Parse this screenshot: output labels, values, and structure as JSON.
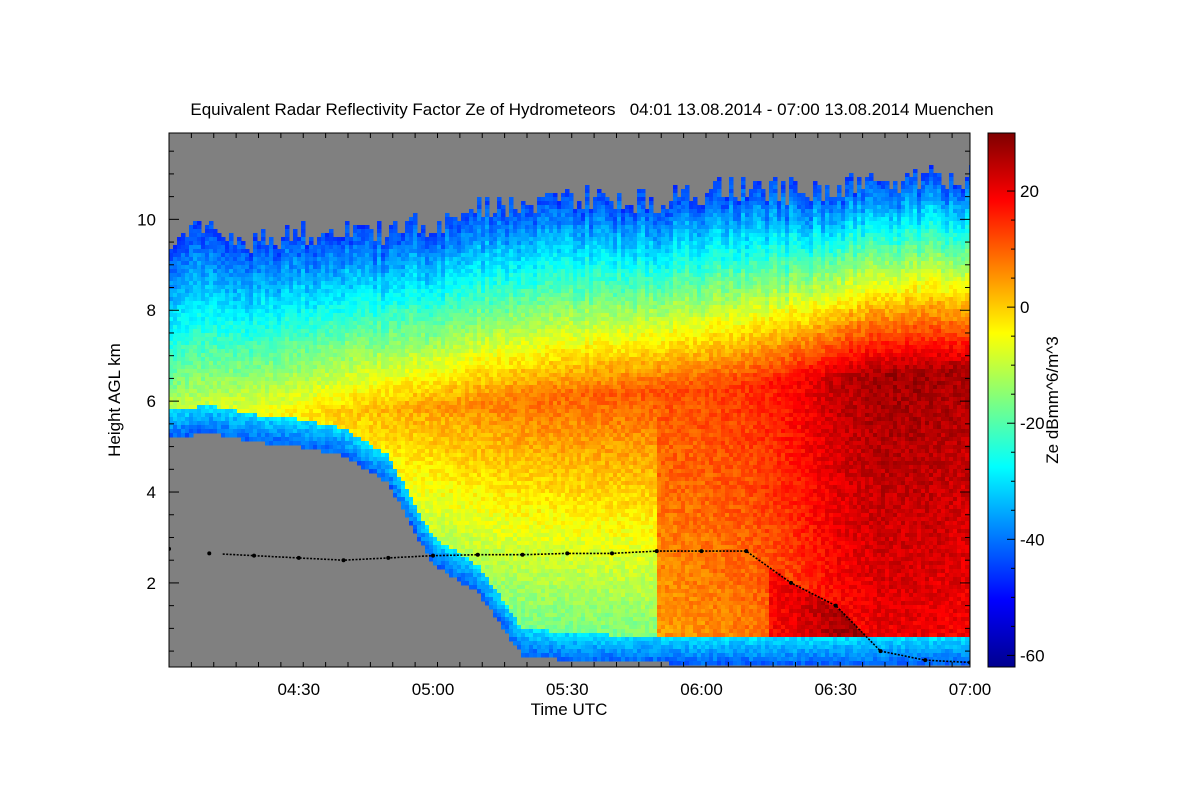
{
  "chart_data": {
    "type": "heatmap",
    "title": "Equivalent Radar Reflectivity Factor Ze of Hydrometeors   04:01 13.08.2014 - 07:00 13.08.2014 Muenchen",
    "xlabel": "Time UTC",
    "ylabel": "Height AGL km",
    "colorbar_label": "Ze dBmm^6/m^3",
    "x_range_minutes_utc": [
      241,
      420
    ],
    "y_range_km": [
      0.15,
      11.9
    ],
    "x_ticks": [
      {
        "label": "04:30",
        "minute": 270
      },
      {
        "label": "05:00",
        "minute": 300
      },
      {
        "label": "05:30",
        "minute": 330
      },
      {
        "label": "06:00",
        "minute": 360
      },
      {
        "label": "06:30",
        "minute": 390
      },
      {
        "label": "07:00",
        "minute": 420
      }
    ],
    "y_ticks": [
      2,
      4,
      6,
      8,
      10
    ],
    "colorbar_range": [
      -62,
      30
    ],
    "colorbar_ticks": [
      20,
      0,
      -20,
      -40,
      -60
    ],
    "colormap": "jet",
    "no_signal_color": "#808080",
    "time_minutes_utc": [
      241,
      250,
      260,
      270,
      280,
      290,
      300,
      310,
      320,
      330,
      340,
      350,
      360,
      370,
      380,
      390,
      400,
      410,
      420
    ],
    "echo_top_km": [
      9.5,
      9.8,
      9.5,
      9.7,
      9.8,
      9.7,
      9.9,
      10.2,
      10.4,
      10.5,
      10.4,
      10.4,
      10.6,
      10.7,
      10.6,
      10.7,
      10.8,
      10.9,
      10.9
    ],
    "echo_base_km": [
      5.2,
      5.3,
      5.1,
      5.0,
      4.8,
      4.2,
      2.4,
      1.8,
      0.4,
      0.3,
      0.25,
      0.25,
      0.2,
      0.2,
      0.2,
      0.2,
      0.2,
      0.2,
      0.2
    ],
    "peak_ze_dbz": [
      -8,
      -6,
      -5,
      -3,
      0,
      2,
      4,
      6,
      8,
      9,
      10,
      11,
      12,
      14,
      18,
      24,
      27,
      27,
      26
    ],
    "melting_layer_km": [
      2.75,
      2.65,
      2.6,
      2.55,
      2.5,
      2.55,
      2.6,
      2.62,
      2.62,
      2.65,
      2.65,
      2.7,
      2.7,
      2.7,
      2.0,
      1.5,
      0.5,
      0.3,
      0.25
    ]
  }
}
